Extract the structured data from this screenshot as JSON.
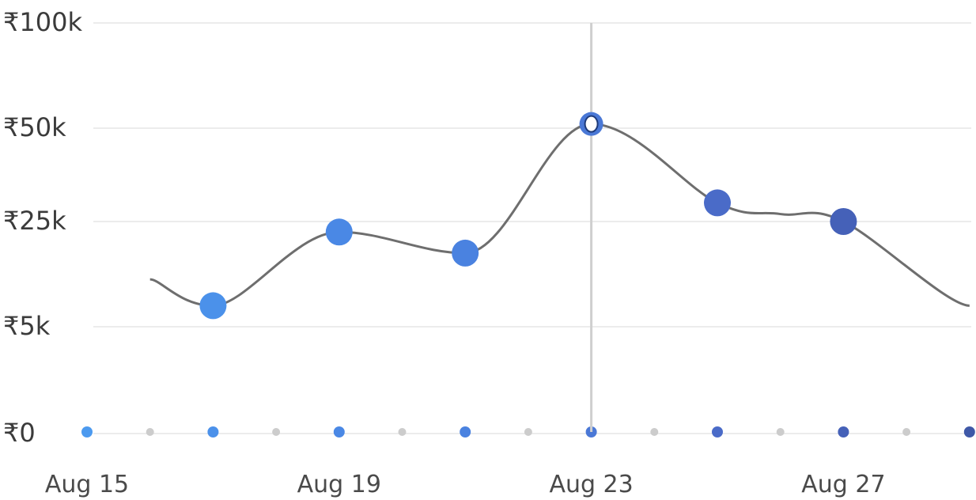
{
  "chart_data": {
    "type": "line",
    "y_ticks": [
      {
        "value": 0,
        "label": "₹0"
      },
      {
        "value": 5000,
        "label": "₹5k"
      },
      {
        "value": 25000,
        "label": "₹25k"
      },
      {
        "value": 50000,
        "label": "₹50k"
      },
      {
        "value": 100000,
        "label": "₹100k"
      }
    ],
    "x_ticks": [
      {
        "date": "Aug 15",
        "label": "Aug 15"
      },
      {
        "date": "Aug 19",
        "label": "Aug 19"
      },
      {
        "date": "Aug 23",
        "label": "Aug 23"
      },
      {
        "date": "Aug 27",
        "label": "Aug 27"
      }
    ],
    "x_domain": [
      "Aug 15",
      "Aug 29"
    ],
    "series": [
      {
        "values": [
          {
            "date": "Aug 16",
            "value": 14000
          },
          {
            "date": "Aug 17",
            "value": 9000
          },
          {
            "date": "Aug 19",
            "value": 23000
          },
          {
            "date": "Aug 21",
            "value": 19000
          },
          {
            "date": "Aug 23",
            "value": 52000
          },
          {
            "date": "Aug 25",
            "value": 30000
          },
          {
            "date": "Aug 26",
            "value": 27000
          },
          {
            "date": "Aug 27",
            "value": 25000
          },
          {
            "date": "Aug 29",
            "value": 9000
          }
        ]
      }
    ],
    "highlighted_date": "Aug 23",
    "grid": true,
    "colors": {
      "line": "#6e6e6e",
      "marker_gradient": [
        "#4c9aef",
        "#4a8ae6",
        "#4a7fdd",
        "#4a68c4",
        "#3f58a7"
      ],
      "crosshair": "#cfcfcf",
      "baseline_minor_dot": "#cccccc"
    }
  }
}
